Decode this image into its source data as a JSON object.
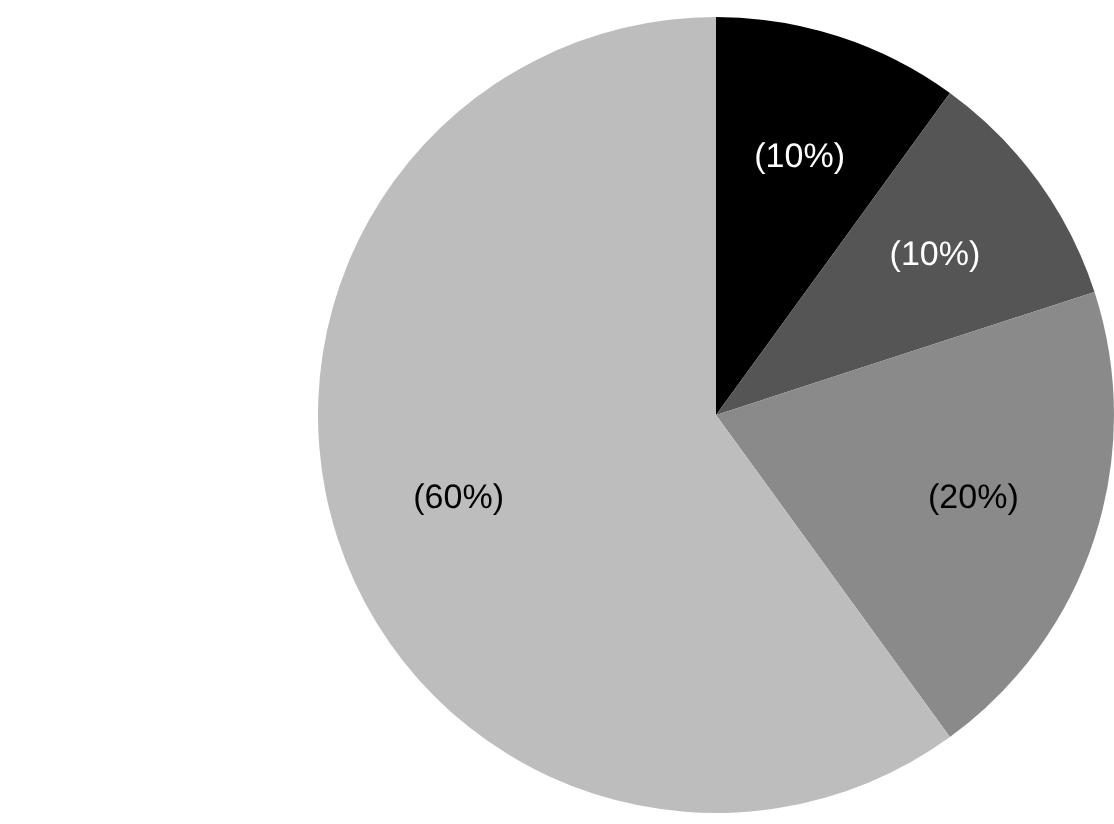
{
  "chart_data": {
    "type": "pie",
    "categories": [
      null,
      null,
      null,
      null
    ],
    "values": [
      10,
      10,
      20,
      60
    ],
    "colors": [
      "#000000",
      "#555555",
      "#8a8a8a",
      "#bdbdbd"
    ],
    "value_labels": [
      "(10%)",
      "(10%)",
      "(20%)",
      "(60%)"
    ],
    "legend": false
  }
}
